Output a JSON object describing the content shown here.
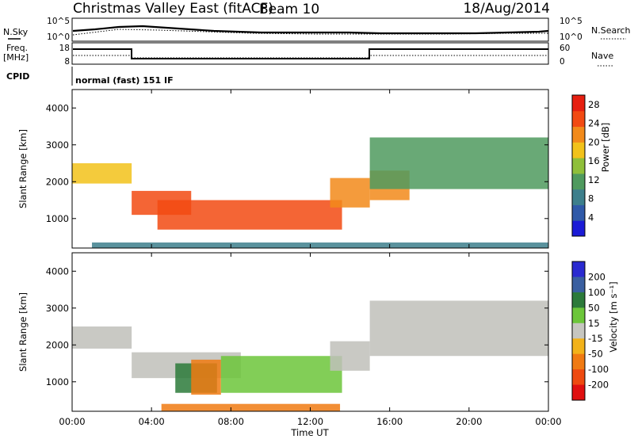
{
  "header": {
    "title": "Christmas Valley East (fitACF)",
    "beam": "Beam 10",
    "date": "18/Aug/2014"
  },
  "top_panel": {
    "nsky_label": "N.Sky",
    "nsky_ticks": [
      "10^5",
      "10^0"
    ],
    "nsearch_label": "N.Search",
    "nsearch_ticks": [
      "10^5",
      "10^0"
    ],
    "freq_label_1": "Freq.",
    "freq_label_2": "[MHz]",
    "freq_ticks": [
      "18",
      "8"
    ],
    "nave_label": "Nave",
    "nave_ticks": [
      "60",
      "0"
    ],
    "cpid_label": "CPID",
    "cpid_text": "normal (fast) 151 IF"
  },
  "colors": {
    "power_scale": [
      "#1b1bd6",
      "#2f59a8",
      "#3d7f8c",
      "#4f9a5e",
      "#8fbf3a",
      "#f2c21a",
      "#f28a1a",
      "#f24a12",
      "#e61f10"
    ],
    "velocity_scale": [
      "#2a2ad0",
      "#3a5fa0",
      "#2c7a3a",
      "#6cc63a",
      "#c6c6c0",
      "#f2b21a",
      "#f07a12",
      "#ee4a10",
      "#e01010"
    ],
    "ground_scatter": "#c0c0ba"
  },
  "chart_data": [
    {
      "type": "heatmap",
      "ylabel": "Slant Range [km]",
      "y_ticks": [
        "1000",
        "2000",
        "3000",
        "4000"
      ],
      "ylim": [
        200,
        4500
      ],
      "colorbar_label": "Power [dB]",
      "colorbar_ticks": [
        "4",
        "8",
        "12",
        "16",
        "20",
        "24",
        "28"
      ],
      "colorbar_range": [
        0,
        30
      ],
      "bands": [
        {
          "t0": 0.0,
          "t1": 3.0,
          "r0": 1950,
          "r1": 2500,
          "value": 18
        },
        {
          "t0": 3.0,
          "t1": 6.0,
          "r0": 1100,
          "r1": 1750,
          "value": 24
        },
        {
          "t0": 4.3,
          "t1": 13.6,
          "r0": 700,
          "r1": 1500,
          "value": 26
        },
        {
          "t0": 13.0,
          "t1": 15.0,
          "r0": 1300,
          "r1": 2100,
          "value": 22
        },
        {
          "t0": 15.0,
          "t1": 17.0,
          "r0": 1500,
          "r1": 2300,
          "value": 20
        },
        {
          "t0": 15.0,
          "t1": 24.0,
          "r0": 1800,
          "r1": 3200,
          "value": 12
        },
        {
          "t0": 1.0,
          "t1": 24.0,
          "r0": 200,
          "r1": 350,
          "value": 8
        }
      ]
    },
    {
      "type": "heatmap",
      "xlabel": "Time UT",
      "x_ticks": [
        "00:00",
        "04:00",
        "08:00",
        "12:00",
        "16:00",
        "20:00",
        "00:00"
      ],
      "xlim": [
        0,
        24
      ],
      "ylabel": "Slant Range [km]",
      "y_ticks": [
        "1000",
        "2000",
        "3000",
        "4000"
      ],
      "ylim": [
        200,
        4500
      ],
      "colorbar_label": "Velocity [m s⁻¹]",
      "colorbar_ticks": [
        "200",
        "100",
        "50",
        "15",
        "-15",
        "-50",
        "-100",
        "-200"
      ],
      "bands": [
        {
          "t0": 0.0,
          "t1": 3.0,
          "r0": 1900,
          "r1": 2500,
          "value": 0
        },
        {
          "t0": 3.0,
          "t1": 8.5,
          "r0": 1100,
          "r1": 1800,
          "value": 0
        },
        {
          "t0": 5.2,
          "t1": 7.3,
          "r0": 700,
          "r1": 1500,
          "value": 60
        },
        {
          "t0": 6.0,
          "t1": 7.5,
          "r0": 650,
          "r1": 1600,
          "value": -60
        },
        {
          "t0": 7.5,
          "t1": 13.6,
          "r0": 700,
          "r1": 1700,
          "value": 40
        },
        {
          "t0": 13.0,
          "t1": 15.0,
          "r0": 1300,
          "r1": 2100,
          "value": 0
        },
        {
          "t0": 15.0,
          "t1": 24.0,
          "r0": 1700,
          "r1": 3200,
          "value": 0
        },
        {
          "t0": 4.5,
          "t1": 13.5,
          "r0": 200,
          "r1": 400,
          "value": -60
        }
      ]
    }
  ]
}
